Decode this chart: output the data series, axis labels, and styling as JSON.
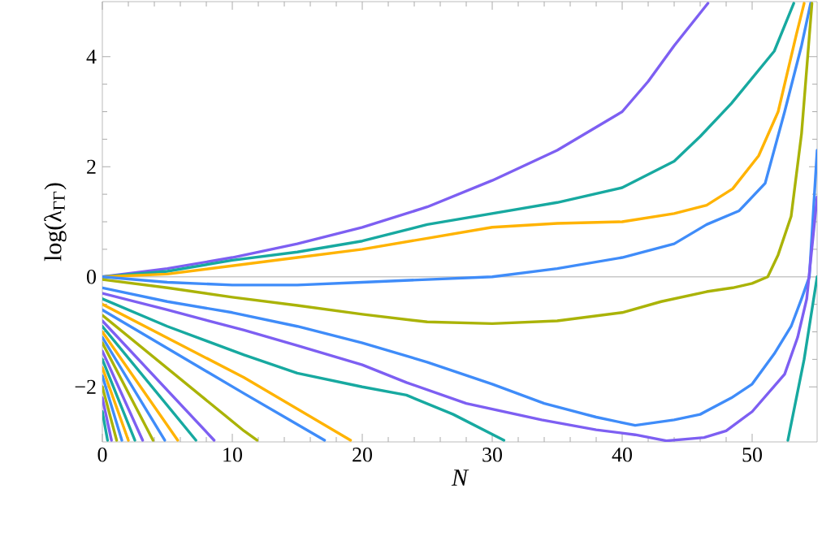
{
  "chart_data": {
    "type": "line",
    "xlabel": "N",
    "ylabel": "log(λ$_{ΓΓ}$)",
    "xlim": [
      0,
      55
    ],
    "ylim": [
      -3,
      5
    ],
    "xticks": [
      0,
      10,
      20,
      30,
      40,
      50
    ],
    "yticks": [
      {
        "value": -2,
        "label": "−2"
      },
      0,
      2,
      4
    ],
    "grid": false,
    "marker": "none",
    "line_style": "solid",
    "ref_lines": [
      {
        "axis": "y",
        "value": 0,
        "color": "#c8c8c8"
      }
    ],
    "series": [
      {
        "color": "#7d5ff2",
        "x": [
          0,
          5,
          10,
          15,
          20,
          25,
          30,
          35,
          40,
          42,
          44,
          46.6
        ],
        "values": [
          0,
          0.15,
          0.35,
          0.6,
          0.9,
          1.27,
          1.75,
          2.3,
          3.0,
          3.55,
          4.2,
          4.97
        ]
      },
      {
        "color": "#17a9a0",
        "x": [
          0,
          5,
          10,
          15,
          20,
          25,
          30,
          35,
          40,
          44,
          46,
          48.4,
          51.7,
          53.2
        ],
        "values": [
          0,
          0.1,
          0.3,
          0.45,
          0.65,
          0.95,
          1.15,
          1.35,
          1.62,
          2.1,
          2.55,
          3.15,
          4.1,
          4.97
        ]
      },
      {
        "color": "#ffb300",
        "x": [
          0,
          5,
          10,
          15,
          20,
          25,
          30,
          35,
          40,
          44,
          46.5,
          48.5,
          50.5,
          52,
          53.4,
          54
        ],
        "values": [
          0,
          0.05,
          0.2,
          0.35,
          0.5,
          0.7,
          0.9,
          0.97,
          1.0,
          1.15,
          1.3,
          1.6,
          2.2,
          3.0,
          4.4,
          4.97
        ]
      },
      {
        "color": "#3f8cf9",
        "x": [
          0,
          5,
          10,
          15,
          20,
          25,
          30,
          35,
          40,
          44,
          46.5,
          49,
          51,
          52.5,
          53.8,
          54.5
        ],
        "values": [
          0,
          -0.1,
          -0.15,
          -0.15,
          -0.1,
          -0.05,
          0,
          0.15,
          0.35,
          0.6,
          0.95,
          1.2,
          1.7,
          3.0,
          4.2,
          4.97
        ]
      },
      {
        "color": "#aab307",
        "x": [
          0,
          5,
          10,
          15,
          20,
          25,
          30,
          35,
          40,
          43,
          46.5,
          48.5,
          50,
          51.2,
          52,
          53,
          53.8,
          54.6
        ],
        "values": [
          -0.05,
          -0.2,
          -0.37,
          -0.52,
          -0.68,
          -0.82,
          -0.85,
          -0.8,
          -0.65,
          -0.45,
          -0.27,
          -0.2,
          -0.12,
          0,
          0.4,
          1.1,
          2.6,
          4.97
        ]
      },
      {
        "color": "#3f8cf9",
        "x": [
          0,
          5,
          10,
          15,
          20,
          25,
          30,
          34,
          38,
          41,
          44,
          46,
          48.4,
          50,
          51.7,
          53,
          53.8,
          54.4,
          55
        ],
        "values": [
          -0.2,
          -0.45,
          -0.65,
          -0.9,
          -1.2,
          -1.55,
          -1.95,
          -2.3,
          -2.55,
          -2.7,
          -2.6,
          -2.5,
          -2.2,
          -1.95,
          -1.4,
          -0.9,
          -0.4,
          0,
          2.3
        ]
      },
      {
        "color": "#7d5ff2",
        "x": [
          0,
          5,
          10.9,
          15,
          20,
          23.4,
          28,
          33.8,
          38,
          41,
          43.4,
          46.3,
          48,
          50,
          52.5,
          53.5,
          54.2,
          55
        ],
        "values": [
          -0.3,
          -0.6,
          -0.97,
          -1.25,
          -1.6,
          -1.92,
          -2.3,
          -2.6,
          -2.78,
          -2.87,
          -2.98,
          -2.92,
          -2.8,
          -2.45,
          -1.77,
          -1.1,
          -0.4,
          1.45
        ]
      },
      {
        "color": "#17a9a0",
        "x": [
          0,
          5,
          10.9,
          15,
          20,
          23.4,
          27,
          30.9,
          42,
          52.75,
          54,
          55
        ],
        "values": [
          -0.4,
          -0.9,
          -1.42,
          -1.75,
          -2.0,
          -2.15,
          -2.5,
          -2.97,
          null,
          -2.97,
          -1.5,
          0
        ]
      },
      {
        "color": "#ffb300",
        "x": [
          0,
          10.9,
          19.1
        ],
        "values": [
          -0.5,
          -1.83,
          -2.97
        ]
      },
      {
        "color": "#3f8cf9",
        "x": [
          0,
          10.9,
          17.1
        ],
        "values": [
          -0.6,
          -2.12,
          -2.97
        ]
      },
      {
        "color": "#aab307",
        "x": [
          0,
          10.9,
          11.9
        ],
        "values": [
          -0.7,
          -2.8,
          -2.97
        ]
      },
      {
        "color": "#7d5ff2",
        "x": [
          0,
          8.6
        ],
        "values": [
          -0.8,
          -2.97
        ]
      },
      {
        "color": "#17a9a0",
        "x": [
          0,
          7.2
        ],
        "values": [
          -0.9,
          -2.97
        ]
      },
      {
        "color": "#ffb300",
        "x": [
          0,
          5.8
        ],
        "values": [
          -1.0,
          -2.97
        ]
      },
      {
        "color": "#3f8cf9",
        "x": [
          0,
          4.8
        ],
        "values": [
          -1.1,
          -2.97
        ]
      },
      {
        "color": "#aab307",
        "x": [
          0,
          3.9
        ],
        "values": [
          -1.2,
          -2.97
        ]
      },
      {
        "color": "#7d5ff2",
        "x": [
          0,
          3.1
        ],
        "values": [
          -1.35,
          -2.97
        ]
      },
      {
        "color": "#17a9a0",
        "x": [
          0,
          2.5
        ],
        "values": [
          -1.5,
          -2.97
        ]
      },
      {
        "color": "#ffb300",
        "x": [
          0,
          2.0
        ],
        "values": [
          -1.65,
          -2.97
        ]
      },
      {
        "color": "#3f8cf9",
        "x": [
          0,
          1.5
        ],
        "values": [
          -1.8,
          -2.97
        ]
      },
      {
        "color": "#aab307",
        "x": [
          0,
          1.1
        ],
        "values": [
          -2.0,
          -2.97
        ]
      },
      {
        "color": "#7d5ff2",
        "x": [
          0,
          0.7
        ],
        "values": [
          -2.2,
          -2.97
        ]
      },
      {
        "color": "#17a9a0",
        "x": [
          0,
          0.4
        ],
        "values": [
          -2.45,
          -2.97
        ]
      }
    ]
  }
}
